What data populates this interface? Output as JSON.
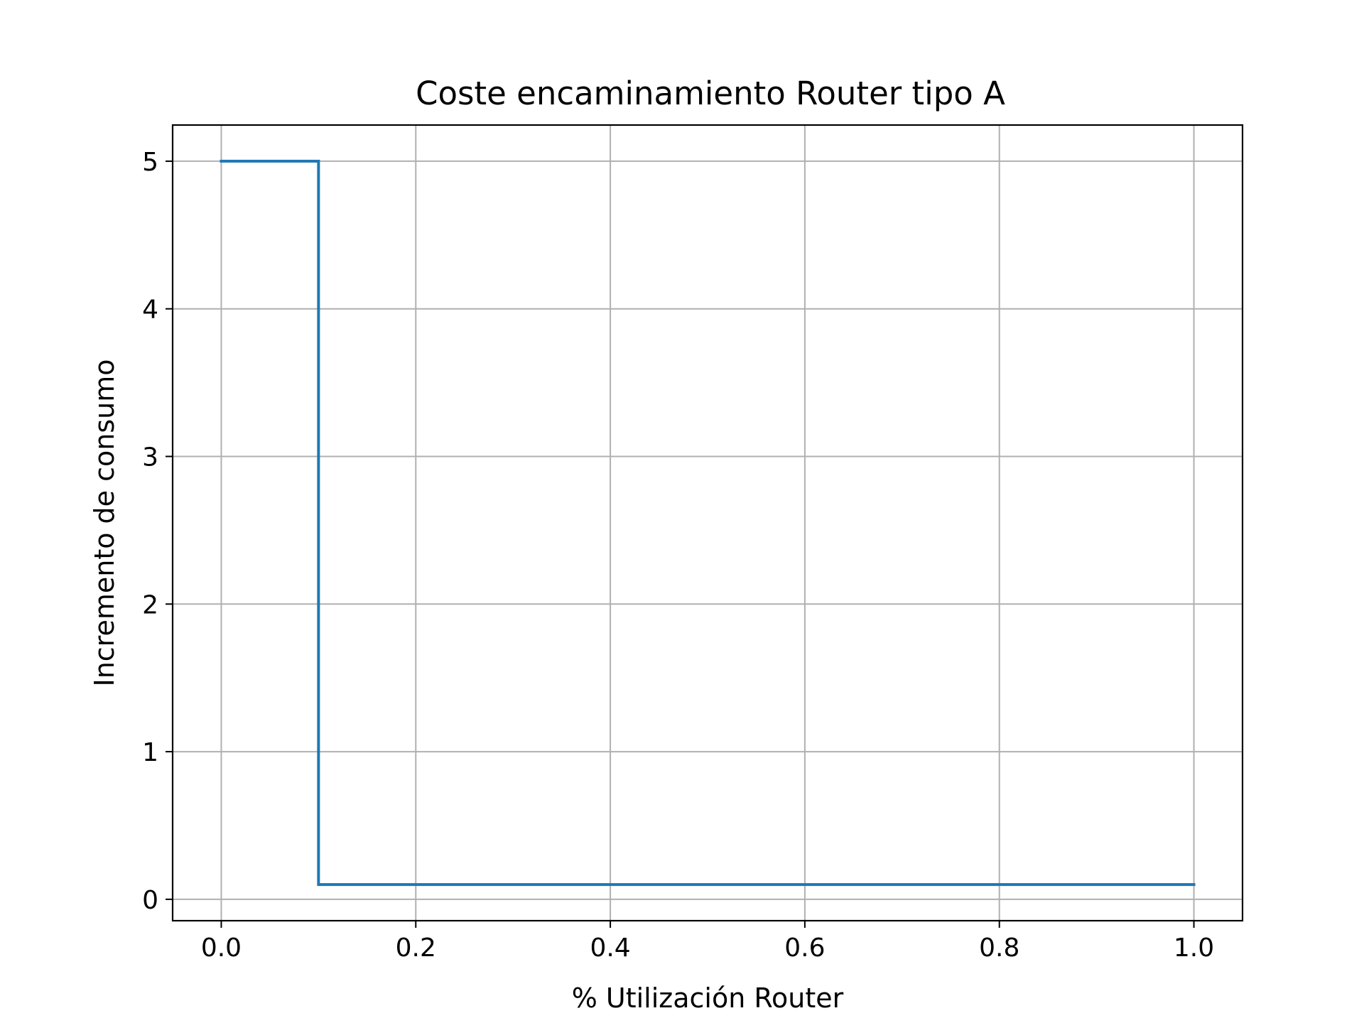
{
  "chart_data": {
    "type": "line",
    "title": "Coste encaminamiento Router tipo A",
    "xlabel": "% Utilización Router",
    "ylabel": "Incremento de consumo",
    "xlim": [
      -0.05,
      1.05
    ],
    "ylim": [
      -0.145,
      5.245
    ],
    "xticks": [
      {
        "value": 0.0,
        "label": "0.0"
      },
      {
        "value": 0.2,
        "label": "0.2"
      },
      {
        "value": 0.4,
        "label": "0.4"
      },
      {
        "value": 0.6,
        "label": "0.6"
      },
      {
        "value": 0.8,
        "label": "0.8"
      },
      {
        "value": 1.0,
        "label": "1.0"
      }
    ],
    "yticks": [
      {
        "value": 0,
        "label": "0"
      },
      {
        "value": 1,
        "label": "1"
      },
      {
        "value": 2,
        "label": "2"
      },
      {
        "value": 3,
        "label": "3"
      },
      {
        "value": 4,
        "label": "4"
      },
      {
        "value": 5,
        "label": "5"
      }
    ],
    "grid": true,
    "legend": "none",
    "series": [
      {
        "color": "#1f77b4",
        "x": [
          0.0,
          0.1,
          0.1,
          1.0
        ],
        "y": [
          5,
          5,
          0.1,
          0.1
        ]
      }
    ]
  }
}
